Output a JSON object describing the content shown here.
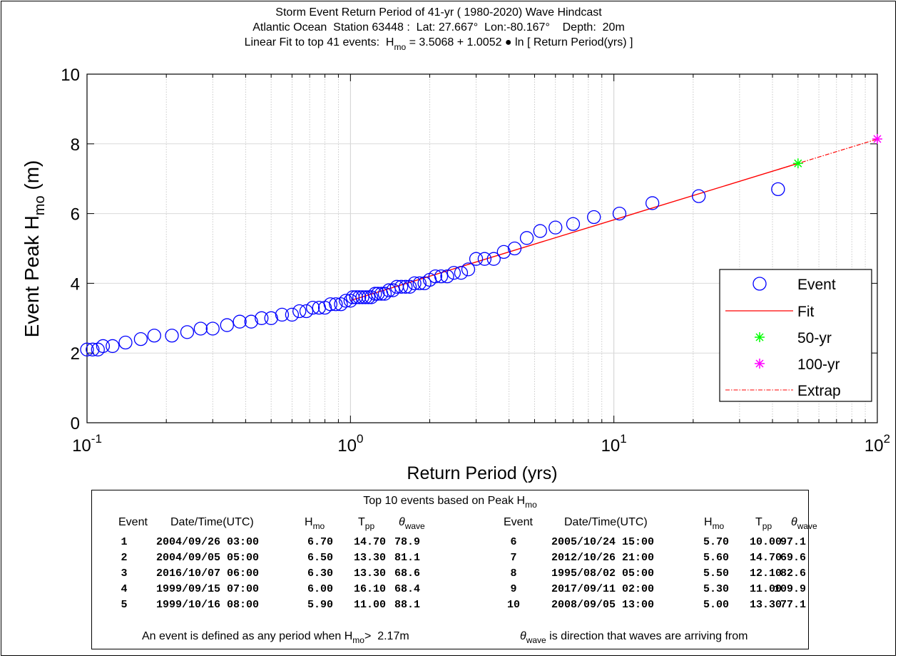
{
  "chart_data": {
    "type": "scatter",
    "title": [
      "Storm Event Return Period of 41-yr ( 1980-2020) Wave Hindcast",
      "Atlantic Ocean  Station 63448 :  Lat: 27.667°  Lon:-80.167°    Depth:  20m"
    ],
    "title_fit": {
      "prefix": "Linear Fit to top 41 events:  H",
      "sub": "mo",
      "suffix": " = 3.5068 + 1.0052 ● ln [ Return Period(yrs) ]"
    },
    "xlabel": "Return Period (yrs)",
    "ylabel": {
      "prefix": "Event Peak H",
      "sub": "mo",
      "suffix": " (m)"
    },
    "xscale": "log",
    "xlim": [
      0.1,
      100
    ],
    "ylim": [
      0,
      10
    ],
    "xticks": [
      0.1,
      1,
      10,
      100
    ],
    "xtick_labels": [
      {
        "base": "10",
        "exp": "-1"
      },
      {
        "base": "10",
        "exp": "0"
      },
      {
        "base": "10",
        "exp": "1"
      },
      {
        "base": "10",
        "exp": "2"
      }
    ],
    "yticks": [
      "0",
      "2",
      "4",
      "6",
      "8",
      "10"
    ],
    "grid": "x-minor and y-major",
    "legend_position": "lower-right",
    "fit": {
      "a": 3.5068,
      "b": 1.0052
    },
    "series": [
      {
        "name": "Event",
        "marker": "circle",
        "color": "#0000ff",
        "x": [
          42,
          21,
          14,
          10.5,
          8.4,
          7.0,
          6.0,
          5.25,
          4.67,
          4.2,
          3.82,
          3.5,
          3.23,
          3.0,
          2.8,
          2.63,
          2.47,
          2.33,
          2.21,
          2.1,
          2.0,
          1.91,
          1.83,
          1.75,
          1.68,
          1.62,
          1.56,
          1.5,
          1.45,
          1.4,
          1.35,
          1.31,
          1.27,
          1.24,
          1.2,
          1.17,
          1.14,
          1.11,
          1.08,
          1.05,
          1.02,
          1.0,
          0.96,
          0.92,
          0.88,
          0.84,
          0.8,
          0.76,
          0.72,
          0.68,
          0.64,
          0.6,
          0.55,
          0.5,
          0.46,
          0.42,
          0.38,
          0.34,
          0.3,
          0.27,
          0.24,
          0.21,
          0.18,
          0.16,
          0.14,
          0.125,
          0.115,
          0.11,
          0.105,
          0.1
        ],
        "y": [
          6.7,
          6.5,
          6.3,
          6.0,
          5.9,
          5.7,
          5.6,
          5.5,
          5.3,
          5.0,
          4.9,
          4.7,
          4.7,
          4.7,
          4.4,
          4.3,
          4.3,
          4.2,
          4.2,
          4.2,
          4.1,
          4.0,
          4.0,
          4.0,
          3.9,
          3.9,
          3.9,
          3.9,
          3.8,
          3.8,
          3.7,
          3.7,
          3.7,
          3.7,
          3.6,
          3.6,
          3.6,
          3.6,
          3.6,
          3.6,
          3.6,
          3.5,
          3.5,
          3.4,
          3.4,
          3.4,
          3.3,
          3.3,
          3.3,
          3.2,
          3.2,
          3.1,
          3.1,
          3.0,
          3.0,
          2.9,
          2.9,
          2.8,
          2.7,
          2.7,
          2.6,
          2.5,
          2.5,
          2.4,
          2.3,
          2.2,
          2.2,
          2.1,
          2.1,
          2.1
        ]
      },
      {
        "name": "Fit",
        "type": "line",
        "color": "#ff0000",
        "x": [
          1,
          50
        ]
      },
      {
        "name": "50-yr",
        "marker": "asterisk",
        "color": "#00ff00",
        "x": [
          50
        ],
        "y": [
          7.44
        ]
      },
      {
        "name": "100-yr",
        "marker": "asterisk",
        "color": "#ff00ff",
        "x": [
          100
        ],
        "y": [
          8.14
        ]
      },
      {
        "name": "Extrap",
        "type": "dashdot",
        "color": "#ff0000",
        "x": [
          42,
          100
        ]
      }
    ]
  },
  "table": {
    "title_prefix": "Top 10 events based on Peak H",
    "title_sub": "mo",
    "col_event": "Event",
    "col_datetime": "Date/Time(UTC)",
    "col_h": "H",
    "col_h_sub": "mo",
    "col_t": "T",
    "col_t_sub": "pp",
    "col_theta": "θ",
    "col_theta_sub": "wave",
    "left_rows": [
      {
        "n": "1",
        "date": "2004/09/26 03:00",
        "h": "6.70",
        "t": "14.70",
        "theta": "78.9"
      },
      {
        "n": "2",
        "date": "2004/09/05 05:00",
        "h": "6.50",
        "t": "13.30",
        "theta": "81.1"
      },
      {
        "n": "3",
        "date": "2016/10/07 06:00",
        "h": "6.30",
        "t": "13.30",
        "theta": "68.6"
      },
      {
        "n": "4",
        "date": "1999/09/15 07:00",
        "h": "6.00",
        "t": "16.10",
        "theta": "68.4"
      },
      {
        "n": "5",
        "date": "1999/10/16 08:00",
        "h": "5.90",
        "t": "11.00",
        "theta": "88.1"
      }
    ],
    "right_rows": [
      {
        "n": "6",
        "date": "2005/10/24 15:00",
        "h": "5.70",
        "t": "10.00",
        "theta": "97.1"
      },
      {
        "n": "7",
        "date": "2012/10/26 21:00",
        "h": "5.60",
        "t": "14.70",
        "theta": "69.6"
      },
      {
        "n": "8",
        "date": "1995/08/02 05:00",
        "h": "5.50",
        "t": "12.10",
        "theta": "82.6"
      },
      {
        "n": "9",
        "date": "2017/09/11 02:00",
        "h": "5.30",
        "t": "11.00",
        "theta": "109.9"
      },
      {
        "n": "10",
        "date": "2008/09/05 13:00",
        "h": "5.00",
        "t": "13.30",
        "theta": "77.1"
      }
    ],
    "footnote_left_prefix": "An event is defined as any period when H",
    "footnote_left_sub": "mo",
    "footnote_left_suffix": ">  2.17m",
    "footnote_right_theta": "θ",
    "footnote_right_sub": "wave",
    "footnote_right_suffix": " is direction that waves are arriving from"
  }
}
